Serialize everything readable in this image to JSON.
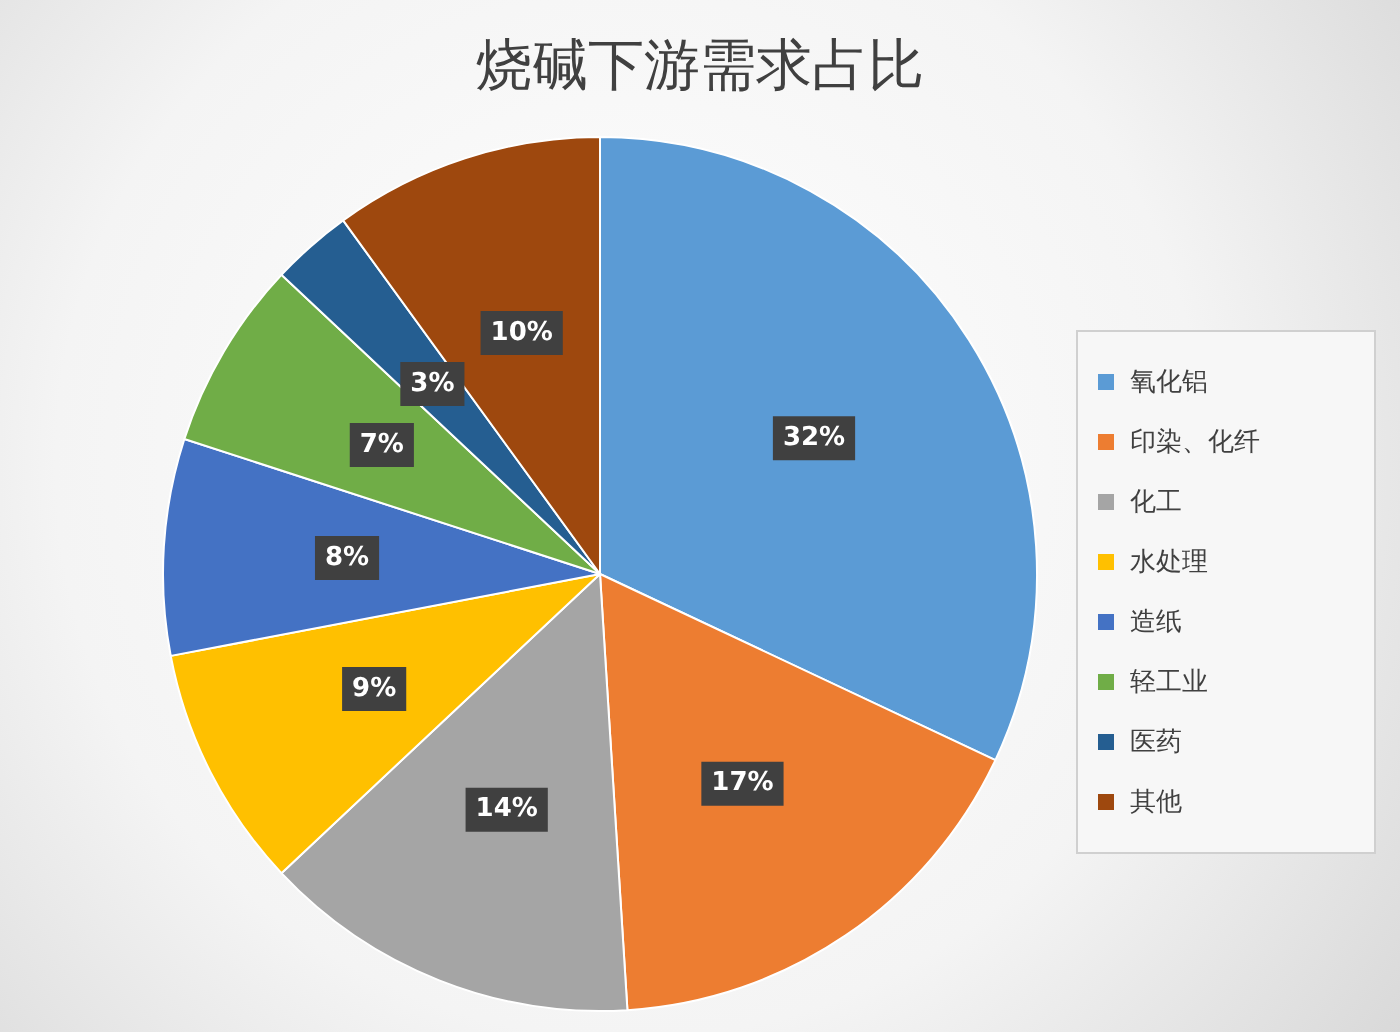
{
  "chart_data": {
    "type": "pie",
    "title": "烧碱下游需求占比",
    "categories": [
      "氧化铝",
      "印染、化纤",
      "化工",
      "水处理",
      "造纸",
      "轻工业",
      "医药",
      "其他"
    ],
    "values": [
      32,
      17,
      14,
      9,
      8,
      7,
      3,
      10
    ],
    "value_labels": [
      "32%",
      "17%",
      "14%",
      "9%",
      "8%",
      "7%",
      "3%",
      "10%"
    ],
    "colors": [
      "#5b9bd5",
      "#ed7d31",
      "#a5a5a5",
      "#ffc000",
      "#4472c4",
      "#70ad47",
      "#255e91",
      "#9e480e"
    ],
    "legend": "right"
  }
}
